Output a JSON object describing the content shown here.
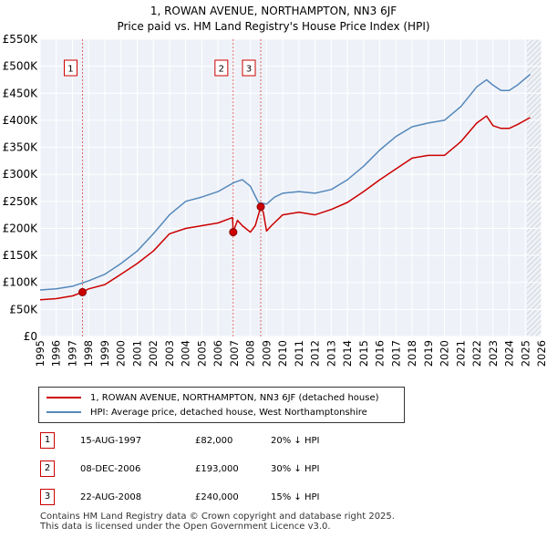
{
  "title_line1": "1, ROWAN AVENUE, NORTHAMPTON, NN3 6JF",
  "title_line2": "Price paid vs. HM Land Registry's House Price Index (HPI)",
  "chart_data": {
    "type": "line",
    "title": "1, ROWAN AVENUE, NORTHAMPTON, NN3 6JF — Price paid vs. HM Land Registry's House Price Index (HPI)",
    "xlabel": "",
    "ylabel": "",
    "xlim": [
      1995,
      2026
    ],
    "ylim": [
      0,
      550000
    ],
    "x_ticks": [
      1995,
      1996,
      1997,
      1998,
      1999,
      2000,
      2001,
      2002,
      2003,
      2004,
      2005,
      2006,
      2007,
      2008,
      2009,
      2010,
      2011,
      2012,
      2013,
      2014,
      2015,
      2016,
      2017,
      2018,
      2019,
      2020,
      2021,
      2022,
      2023,
      2024,
      2025,
      2026
    ],
    "y_ticks": [
      0,
      50000,
      100000,
      150000,
      200000,
      250000,
      300000,
      350000,
      400000,
      450000,
      500000,
      550000
    ],
    "y_tick_labels": [
      "£0",
      "£50K",
      "£100K",
      "£150K",
      "£200K",
      "£250K",
      "£300K",
      "£350K",
      "£400K",
      "£450K",
      "£500K",
      "£550K"
    ],
    "grid": true,
    "hatched_after": 2025.1,
    "series": [
      {
        "name": "1, ROWAN AVENUE, NORTHAMPTON, NN3 6JF (detached house)",
        "color": "#cc0000",
        "x": [
          1995,
          1996,
          1997,
          1997.62,
          1998,
          1999,
          2000,
          2001,
          2002,
          2003,
          2004,
          2005,
          2006,
          2006.9,
          2006.94,
          2007.2,
          2007.5,
          2008,
          2008.3,
          2008.64,
          2008.8,
          2009,
          2009.3,
          2010,
          2011,
          2012,
          2013,
          2014,
          2015,
          2016,
          2017,
          2018,
          2019,
          2020,
          2021,
          2022,
          2022.6,
          2023,
          2023.5,
          2024,
          2024.5,
          2025.3
        ],
        "y": [
          68000,
          70000,
          75000,
          82000,
          88000,
          96000,
          115000,
          135000,
          158000,
          190000,
          200000,
          205000,
          210000,
          220000,
          193000,
          215000,
          205000,
          193000,
          205000,
          240000,
          230000,
          195000,
          205000,
          225000,
          230000,
          225000,
          235000,
          248000,
          268000,
          290000,
          310000,
          330000,
          335000,
          335000,
          360000,
          395000,
          408000,
          390000,
          385000,
          385000,
          392000,
          405000
        ]
      },
      {
        "name": "HPI: Average price, detached house, West Northamptonshire",
        "color": "#5588bb",
        "x": [
          1995,
          1996,
          1997,
          1998,
          1999,
          2000,
          2001,
          2002,
          2003,
          2004,
          2005,
          2006,
          2007,
          2007.5,
          2008,
          2008.5,
          2009,
          2009.5,
          2010,
          2011,
          2012,
          2013,
          2014,
          2015,
          2016,
          2017,
          2018,
          2019,
          2020,
          2021,
          2022,
          2022.6,
          2023,
          2023.5,
          2024,
          2024.5,
          2025.3
        ],
        "y": [
          86000,
          88000,
          93000,
          103000,
          115000,
          135000,
          158000,
          190000,
          225000,
          250000,
          258000,
          268000,
          285000,
          290000,
          278000,
          248000,
          245000,
          258000,
          265000,
          268000,
          265000,
          272000,
          290000,
          315000,
          345000,
          370000,
          388000,
          395000,
          400000,
          425000,
          462000,
          475000,
          465000,
          455000,
          455000,
          465000,
          485000
        ]
      }
    ],
    "markers": [
      {
        "label": "1",
        "x": 1997.62,
        "y": 82000
      },
      {
        "label": "2",
        "x": 2006.94,
        "y": 193000
      },
      {
        "label": "3",
        "x": 2008.64,
        "y": 240000
      }
    ]
  },
  "legend": {
    "property_label": "1, ROWAN AVENUE, NORTHAMPTON, NN3 6JF (detached house)",
    "hpi_label": "HPI: Average price, detached house, West Northamptonshire",
    "property_color": "#cc0000",
    "hpi_color": "#5588bb"
  },
  "transactions": [
    {
      "num": "1",
      "date": "15-AUG-1997",
      "price": "£82,000",
      "hpi": "20% ↓ HPI"
    },
    {
      "num": "2",
      "date": "08-DEC-2006",
      "price": "£193,000",
      "hpi": "30% ↓ HPI"
    },
    {
      "num": "3",
      "date": "22-AUG-2008",
      "price": "£240,000",
      "hpi": "15% ↓ HPI"
    }
  ],
  "footer_line1": "Contains HM Land Registry data © Crown copyright and database right 2025.",
  "footer_line2": "This data is licensed under the Open Government Licence v3.0."
}
